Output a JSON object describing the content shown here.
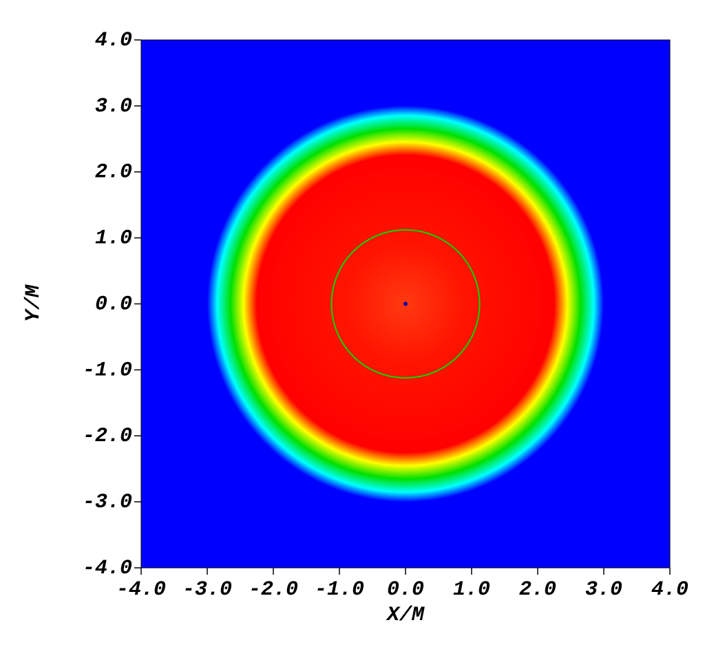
{
  "chart_data": {
    "type": "radial-density",
    "xlabel": "X/M",
    "ylabel": "Y/M",
    "xlim": [
      -4,
      4
    ],
    "ylim": [
      -4,
      4
    ],
    "xticks": [
      {
        "value": -4,
        "label": "-4.0"
      },
      {
        "value": -3,
        "label": "-3.0"
      },
      {
        "value": -2,
        "label": "-2.0"
      },
      {
        "value": -1,
        "label": "-1.0"
      },
      {
        "value": 0,
        "label": "0.0"
      },
      {
        "value": 1,
        "label": "1.0"
      },
      {
        "value": 2,
        "label": "2.0"
      },
      {
        "value": 3,
        "label": "3.0"
      },
      {
        "value": 4,
        "label": "4.0"
      }
    ],
    "yticks": [
      {
        "value": -4,
        "label": "-4.0"
      },
      {
        "value": -3,
        "label": "-3.0"
      },
      {
        "value": -2,
        "label": "-2.0"
      },
      {
        "value": -1,
        "label": "-1.0"
      },
      {
        "value": 0,
        "label": "0.0"
      },
      {
        "value": 1,
        "label": "1.0"
      },
      {
        "value": 2,
        "label": "2.0"
      },
      {
        "value": 3,
        "label": "3.0"
      },
      {
        "value": 4,
        "label": "4.0"
      }
    ],
    "background_color": "#0000ff",
    "profile": {
      "r": [
        0,
        0.9,
        2.25,
        2.45,
        2.65,
        2.85,
        3.0
      ],
      "colors": [
        "#ff3a10",
        "#ff1400",
        "#ff0000",
        "#ffff00",
        "#00e000",
        "#00ffff",
        "#0000ff"
      ]
    },
    "contour": {
      "radius": 1.12,
      "color": "#00dd00"
    },
    "center_point": {
      "x": 0,
      "y": 0,
      "color": "#0000aa"
    }
  }
}
